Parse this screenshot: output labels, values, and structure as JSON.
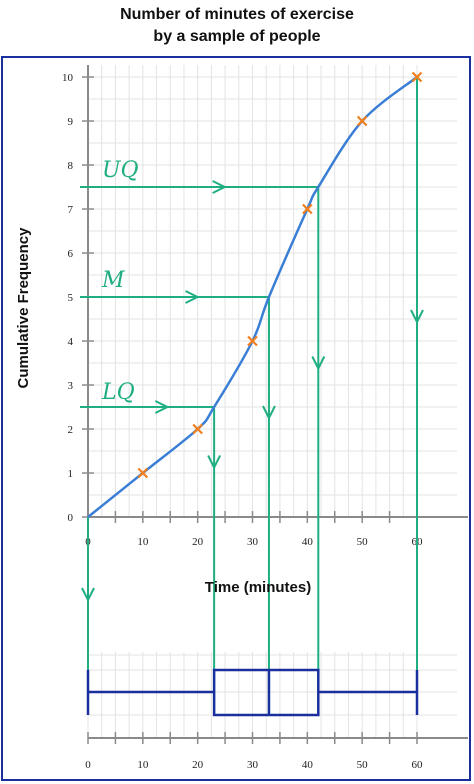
{
  "title_line1": "Number of minutes of exercise",
  "title_line2": "by a sample of people",
  "chart_data": {
    "type": "line",
    "title": "Number of minutes of exercise by a sample of people",
    "xlabel": "Time (minutes)",
    "ylabel": "Cumulative Frequency",
    "xlim": [
      0,
      60
    ],
    "ylim": [
      0,
      10
    ],
    "x_ticks": [
      0,
      10,
      20,
      30,
      40,
      50,
      60
    ],
    "y_ticks": [
      0,
      1,
      2,
      3,
      4,
      5,
      6,
      7,
      8,
      9,
      10
    ],
    "grid": true,
    "points": [
      {
        "x": 10,
        "y": 1
      },
      {
        "x": 20,
        "y": 2
      },
      {
        "x": 30,
        "y": 4
      },
      {
        "x": 40,
        "y": 7
      },
      {
        "x": 50,
        "y": 9
      },
      {
        "x": 60,
        "y": 10
      }
    ],
    "curve": [
      {
        "x": 0,
        "y": 0
      },
      {
        "x": 10,
        "y": 1
      },
      {
        "x": 20,
        "y": 2
      },
      {
        "x": 23,
        "y": 2.5
      },
      {
        "x": 30,
        "y": 4
      },
      {
        "x": 33,
        "y": 5
      },
      {
        "x": 40,
        "y": 7
      },
      {
        "x": 42,
        "y": 7.5
      },
      {
        "x": 50,
        "y": 9
      },
      {
        "x": 60,
        "y": 10
      }
    ],
    "quartiles": [
      {
        "label": "LQ",
        "y": 2.5,
        "x": 23
      },
      {
        "label": "M",
        "y": 5,
        "x": 33
      },
      {
        "label": "UQ",
        "y": 7.5,
        "x": 42
      }
    ],
    "boxplot": {
      "min": 0,
      "lq": 23,
      "median": 33,
      "uq": 42,
      "max": 60
    }
  },
  "colors": {
    "curve": "#3a7fd5",
    "points": "#f07f1e",
    "guides": "#1fae82",
    "box": "#1a2f9e",
    "grid": "#e3e3e3",
    "axis": "#8a8a8a"
  }
}
